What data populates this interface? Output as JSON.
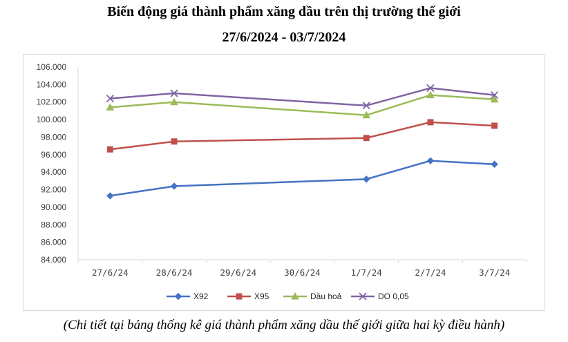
{
  "title_line1": "Biến động giá thành phẩm xăng dầu trên thị trường thế giới",
  "title_line2": "27/6/2024 - 03/7/2024",
  "caption": "(Chi tiết tại bảng thống kê giá thành phẩm xăng dầu thế giới giữa hai kỳ điều hành)",
  "chart_data": {
    "type": "line",
    "title": "Biến động giá thành phẩm xăng dầu trên thị trường thế giới",
    "subtitle": "27/6/2024 - 03/7/2024",
    "categories": [
      "27/6/24",
      "28/6/24",
      "29/6/24",
      "30/6/24",
      "1/7/24",
      "2/7/24",
      "3/7/24"
    ],
    "ylim": [
      84000,
      106000
    ],
    "yticks": [
      84000,
      86000,
      88000,
      90000,
      92000,
      94000,
      96000,
      98000,
      100000,
      102000,
      104000,
      106000
    ],
    "ytick_labels": [
      "84.000",
      "86.000",
      "88.000",
      "90.000",
      "92.000",
      "94.000",
      "96.000",
      "98.000",
      "100.000",
      "102.000",
      "104.000",
      "106.000"
    ],
    "grid": false,
    "legend_position": "bottom",
    "series": [
      {
        "name": "X92",
        "color": "#4472c4",
        "marker": "diamond",
        "values": [
          91300,
          92400,
          null,
          null,
          93200,
          95300,
          94900
        ]
      },
      {
        "name": "X95",
        "color": "#c0504d",
        "marker": "square",
        "values": [
          96600,
          97500,
          null,
          null,
          97900,
          99700,
          99300
        ]
      },
      {
        "name": "Dầu hoả",
        "color": "#9bbb59",
        "marker": "triangle",
        "values": [
          101400,
          102000,
          null,
          null,
          100500,
          102800,
          102300
        ]
      },
      {
        "name": "DO 0,05",
        "color": "#8064a2",
        "marker": "x",
        "values": [
          102400,
          103000,
          null,
          null,
          101600,
          103600,
          102800
        ]
      }
    ]
  }
}
